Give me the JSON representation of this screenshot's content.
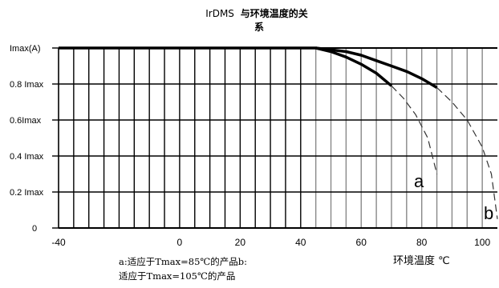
{
  "chart_data": {
    "type": "line",
    "title_prefix": "IrDMS",
    "title_main": "与环境温度的关",
    "title_wrap": "系",
    "xlabel": "环境温度 ℃",
    "x_ticks": [
      "-40",
      "0",
      "20",
      "40",
      "60",
      "80",
      "100"
    ],
    "x_tick_values": [
      -40,
      0,
      20,
      40,
      60,
      80,
      100
    ],
    "y_ticks": [
      "0",
      "0.2 Imax",
      "0.4 Imax",
      "0.6Imax",
      "0.8 Imax",
      "Imax(A)"
    ],
    "y_tick_values": [
      0,
      0.2,
      0.4,
      0.6,
      0.8,
      1.0
    ],
    "xlim": [
      -40,
      105
    ],
    "ylim": [
      0,
      1.0
    ],
    "grid": true,
    "series": [
      {
        "name": "a",
        "solid": [
          [
            -40,
            1.0
          ],
          [
            45,
            1.0
          ],
          [
            50,
            0.98
          ],
          [
            55,
            0.95
          ],
          [
            60,
            0.91
          ],
          [
            65,
            0.86
          ],
          [
            70,
            0.79
          ]
        ],
        "dashed": [
          [
            70,
            0.79
          ],
          [
            74,
            0.72
          ],
          [
            78,
            0.63
          ],
          [
            82,
            0.5
          ],
          [
            85,
            0.3
          ]
        ]
      },
      {
        "name": "b",
        "solid": [
          [
            45,
            1.0
          ],
          [
            55,
            0.98
          ],
          [
            60,
            0.96
          ],
          [
            65,
            0.93
          ],
          [
            70,
            0.9
          ],
          [
            75,
            0.87
          ],
          [
            80,
            0.83
          ],
          [
            85,
            0.78
          ]
        ],
        "dashed": [
          [
            85,
            0.78
          ],
          [
            90,
            0.7
          ],
          [
            95,
            0.6
          ],
          [
            100,
            0.45
          ],
          [
            103,
            0.3
          ],
          [
            105,
            0.05
          ]
        ]
      }
    ],
    "notes": [
      "a:适应于Tmax=85℃的产品b:",
      "适应于Tmax=105℃的产品"
    ]
  }
}
